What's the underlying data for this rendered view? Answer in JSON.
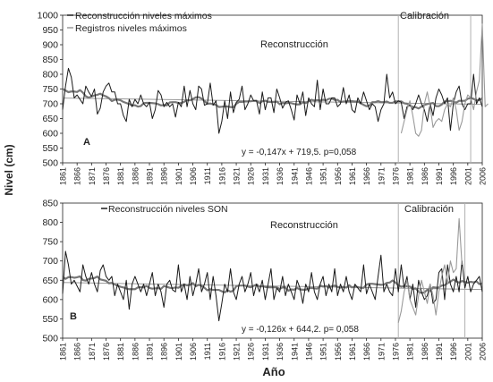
{
  "figure": {
    "ylabel_shared": "Nivel (cm)",
    "xlabel_shared": "Año"
  },
  "colors": {
    "reconstruction": "#1a1a1a",
    "records": "#9a9a9a",
    "smooth": "#777777",
    "trend": "#9a9a9a",
    "calibration_line": "#b0b0b0",
    "axis": "#222222"
  },
  "chart_data": [
    {
      "type": "line",
      "panel_label": "A",
      "title": "",
      "region_labels": {
        "reconstruction": "Reconstrucción",
        "calibration": "Calibración"
      },
      "xlabel": "",
      "ylabel": "Nivel (cm)",
      "xlim": [
        1861,
        2006
      ],
      "ylim": [
        500,
        1000
      ],
      "yticks": [
        500,
        550,
        600,
        650,
        700,
        750,
        800,
        850,
        900,
        950,
        1000
      ],
      "xticks": [
        1861,
        1866,
        1871,
        1876,
        1881,
        1886,
        1891,
        1896,
        1901,
        1906,
        1911,
        1916,
        1921,
        1926,
        1931,
        1936,
        1941,
        1946,
        1951,
        1956,
        1961,
        1966,
        1971,
        1976,
        1981,
        1986,
        1991,
        1996,
        2001,
        2006
      ],
      "calibration_period": [
        1977,
        2002
      ],
      "equation": "y = -0,147x + 719,5.  p=0,058",
      "trend": {
        "slope": -0.147,
        "intercept": 719.5,
        "x0": 1861
      },
      "legend": [
        "Reconstrucción niveles máximos",
        "Registros niveles máximos"
      ],
      "series": [
        {
          "name": "Reconstrucción niveles máximos",
          "x_start": 1861,
          "values": [
            680,
            760,
            820,
            790,
            720,
            730,
            715,
            700,
            760,
            740,
            725,
            750,
            665,
            685,
            740,
            760,
            770,
            740,
            740,
            700,
            700,
            660,
            640,
            715,
            690,
            715,
            700,
            730,
            700,
            690,
            705,
            650,
            680,
            745,
            730,
            690,
            705,
            690,
            700,
            655,
            705,
            690,
            760,
            690,
            745,
            700,
            680,
            760,
            750,
            695,
            700,
            770,
            695,
            710,
            600,
            640,
            710,
            650,
            740,
            670,
            705,
            715,
            760,
            680,
            700,
            730,
            710,
            710,
            665,
            740,
            680,
            720,
            720,
            670,
            750,
            720,
            685,
            705,
            710,
            680,
            645,
            730,
            700,
            740,
            660,
            720,
            700,
            690,
            780,
            680,
            750,
            700,
            700,
            720,
            720,
            690,
            700,
            755,
            700,
            730,
            680,
            670,
            720,
            700,
            740,
            710,
            680,
            700,
            690,
            640,
            680,
            700,
            800,
            720,
            740,
            700,
            710,
            705,
            650,
            690,
            695,
            680,
            700,
            730,
            700,
            680,
            640,
            700,
            660,
            720,
            750,
            730,
            700,
            720,
            610,
            700,
            740,
            760,
            700,
            680,
            700,
            700,
            800,
            700,
            720,
            690
          ]
        },
        {
          "name": "Registros niveles máximos",
          "x_start": 1978,
          "values": [
            600,
            640,
            680,
            710,
            660,
            600,
            590,
            610,
            700,
            740,
            690,
            620,
            640,
            650,
            640,
            680,
            700,
            690,
            720,
            680,
            610,
            640,
            700,
            730,
            720,
            680,
            740,
            780,
            970,
            690,
            700
          ]
        }
      ]
    },
    {
      "type": "line",
      "panel_label": "B",
      "title": "",
      "region_labels": {
        "reconstruction": "Reconstrucción",
        "calibration": "Calibración"
      },
      "xlabel": "Año",
      "ylabel": "Nivel (cm)",
      "xlim": [
        1861,
        2006
      ],
      "ylim": [
        500,
        850
      ],
      "yticks": [
        500,
        550,
        600,
        650,
        700,
        750,
        800,
        850
      ],
      "xticks": [
        1861,
        1866,
        1871,
        1876,
        1881,
        1886,
        1891,
        1896,
        1901,
        1906,
        1911,
        1916,
        1921,
        1926,
        1931,
        1936,
        1941,
        1946,
        1951,
        1956,
        1961,
        1966,
        1971,
        1976,
        1981,
        1986,
        1991,
        1996,
        2001,
        2006
      ],
      "calibration_period": [
        1977,
        2000
      ],
      "equation": "y = -0,126x + 644,2. p= 0,058",
      "trend": {
        "slope": -0.126,
        "intercept": 644.2,
        "x0": 1861
      },
      "legend": [
        "Reconstrucción niveles SON"
      ],
      "series": [
        {
          "name": "Reconstrucción niveles SON",
          "x_start": 1861,
          "values": [
            615,
            725,
            690,
            640,
            650,
            635,
            620,
            690,
            660,
            640,
            670,
            640,
            620,
            675,
            690,
            660,
            650,
            660,
            610,
            640,
            620,
            600,
            650,
            575,
            640,
            660,
            640,
            620,
            640,
            610,
            640,
            670,
            610,
            640,
            620,
            580,
            640,
            650,
            625,
            620,
            690,
            620,
            640,
            600,
            660,
            610,
            640,
            680,
            620,
            640,
            670,
            600,
            660,
            610,
            545,
            590,
            640,
            620,
            680,
            620,
            600,
            640,
            660,
            620,
            640,
            670,
            610,
            640,
            620,
            650,
            600,
            640,
            680,
            600,
            630,
            620,
            660,
            610,
            640,
            620,
            600,
            650,
            630,
            590,
            640,
            620,
            670,
            620,
            600,
            640,
            660,
            610,
            640,
            620,
            680,
            610,
            640,
            620,
            660,
            620,
            600,
            640,
            630,
            620,
            690,
            615,
            640,
            620,
            600,
            660,
            715,
            620,
            640,
            620,
            610,
            680,
            620,
            690,
            630,
            660,
            600,
            640,
            580,
            650,
            620,
            600,
            610,
            640,
            590,
            600,
            670,
            680,
            600,
            690,
            640,
            620,
            660,
            620,
            700,
            630,
            660,
            620,
            640,
            650,
            660,
            620
          ]
        },
        {
          "name": "",
          "x_start": 1977,
          "values": [
            540,
            570,
            620,
            650,
            600,
            580,
            560,
            610,
            650,
            620,
            590,
            640,
            610,
            560,
            620,
            660,
            690,
            640,
            700,
            670,
            680,
            810,
            690
          ]
        }
      ]
    }
  ]
}
